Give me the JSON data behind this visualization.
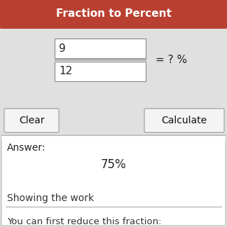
{
  "title": "Fraction to Percent",
  "title_bg_color": "#b94030",
  "title_text_color": "#ffffff",
  "bg_color": "#e0e0e0",
  "answer_box_bg": "#ffffff",
  "answer_box_border": "#bbbbbb",
  "input_box_bg": "#ffffff",
  "input_box_border": "#888888",
  "numerator": "9",
  "denominator": "12",
  "equals_text": "= ? %",
  "clear_label": "Clear",
  "calculate_label": "Calculate",
  "answer_label": "Answer:",
  "answer_value": "75%",
  "showing_work_label": "Showing the work",
  "reduce_label": "You can first reduce this fraction:",
  "button_bg": "#f4f4f4",
  "button_border": "#999999",
  "fig_width": 3.24,
  "fig_height": 3.24,
  "dpi": 100,
  "outer_border_color": "#cccccc"
}
